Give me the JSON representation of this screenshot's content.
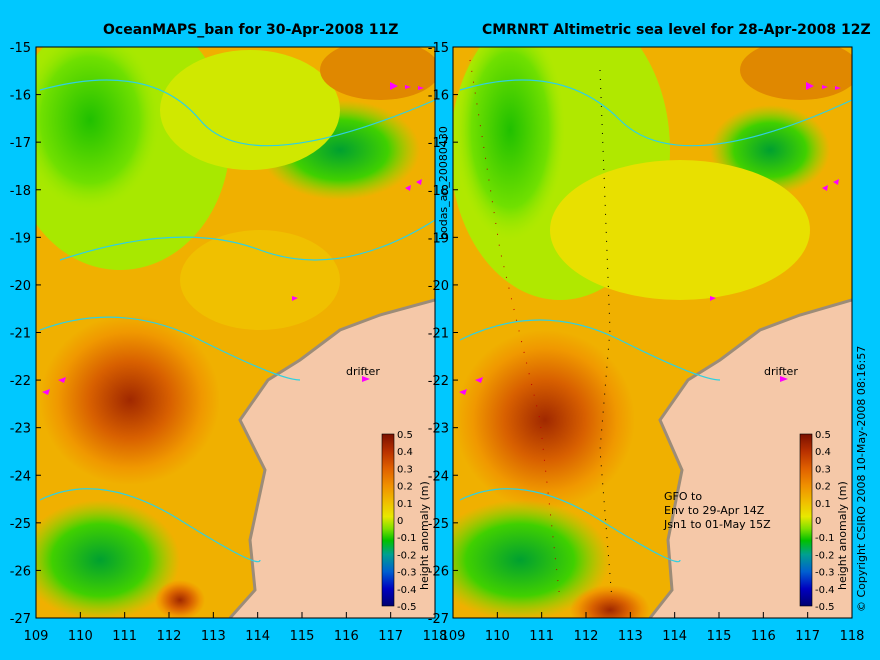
{
  "left_panel": {
    "title": "OceanMAPS_ban for 30-Apr-2008 11Z",
    "drifter_label": "drifter"
  },
  "right_panel": {
    "title": "CMRNRT Altimetric sea level  for 28-Apr-2008 12Z",
    "drifter_label": "drifter",
    "satellite_note": [
      "GFO to",
      "Env to 29-Apr 14Z",
      "Jsn1 to 01-May 15Z"
    ]
  },
  "axes": {
    "y_ticks": [
      "-15",
      "-16",
      "-17",
      "-18",
      "-19",
      "-20",
      "-21",
      "-22",
      "-23",
      "-24",
      "-25",
      "-26",
      "-27"
    ],
    "x_ticks": [
      "109",
      "110",
      "111",
      "112",
      "113",
      "114",
      "115",
      "116",
      "117",
      "118"
    ],
    "x_range": [
      109,
      118
    ],
    "y_range": [
      -27,
      -15
    ]
  },
  "colorbar": {
    "label": "height anomaly (m)",
    "ticks": [
      "0.5",
      "0.4",
      "0.3",
      "0.2",
      "0.1",
      "0",
      "-0.1",
      "-0.2",
      "-0.3",
      "-0.4",
      "-0.5"
    ],
    "colors": [
      "#8b1a00",
      "#c84a00",
      "#e07000",
      "#f09000",
      "#f0b800",
      "#e8e000",
      "#c0f000",
      "#60e000",
      "#00c000",
      "#00a080",
      "#0080c0",
      "#0040e0",
      "#0000c0",
      "#000080"
    ]
  },
  "side_labels": {
    "center": "bodas_an_20080430",
    "right": "© Copyright CSIRO 2008   10-May-2008 08:16:57"
  },
  "colors": {
    "background": "#00c8ff",
    "land": "#f5c8a8",
    "coast": "#b0a090",
    "contour": "#30d0e0",
    "drifter": "#ff00ff"
  }
}
